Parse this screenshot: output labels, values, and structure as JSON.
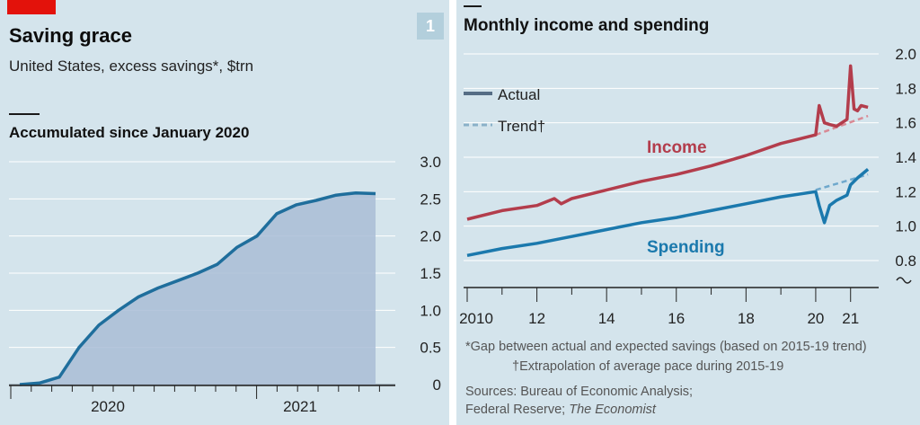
{
  "left_panel": {
    "title": "Saving grace",
    "subtitle": "United States, excess savings*, $trn",
    "panel_number": "1"
  },
  "right_panel": {
    "footnote_star": "*Gap between actual and expected savings (based on 2015-19 trend)",
    "footnote_dagger": "†Extrapolation of average pace during 2015-19",
    "sources_line1": "Sources: Bureau of Economic Analysis;",
    "sources_line2_prefix": "Federal Reserve; ",
    "sources_line2_italic": "The Economist"
  },
  "colors": {
    "background": "#d4e4ec",
    "saving_line": "#1f6e9c",
    "saving_fill": "#a9bdd6",
    "income": "#b33d4c",
    "spending": "#1b79ad",
    "legend_actual": "#556d85",
    "legend_trend": "#8ab0c8",
    "grid": "#ffffff",
    "brand_red": "#e3120b"
  },
  "chart_data": [
    {
      "type": "area",
      "title": "Accumulated since January 2020",
      "xlabel": "",
      "ylabel": "",
      "x_tick_labels": [
        "2020",
        "2021"
      ],
      "y_tick_labels": [
        "0",
        "0.5",
        "1.0",
        "1.5",
        "2.0",
        "2.5",
        "3.0"
      ],
      "ylim": [
        0,
        3.0
      ],
      "x_range_months": [
        "2020-01",
        "2021-07"
      ],
      "grid": true,
      "series": [
        {
          "x": [
            "2020-01",
            "2020-02",
            "2020-03",
            "2020-04",
            "2020-05",
            "2020-06",
            "2020-07",
            "2020-08",
            "2020-09",
            "2020-10",
            "2020-11",
            "2020-12",
            "2021-01",
            "2021-02",
            "2021-03",
            "2021-04",
            "2021-05",
            "2021-06",
            "2021-07"
          ],
          "values": [
            0.0,
            0.02,
            0.1,
            0.5,
            0.8,
            1.0,
            1.18,
            1.3,
            1.4,
            1.5,
            1.62,
            1.85,
            2.0,
            2.3,
            2.42,
            2.48,
            2.55,
            2.58,
            2.57
          ]
        }
      ]
    },
    {
      "type": "line",
      "title": "Monthly income and spending",
      "xlabel": "",
      "ylabel": "",
      "x_tick_labels": [
        "2010",
        "12",
        "14",
        "16",
        "18",
        "20",
        "21"
      ],
      "y_tick_labels": [
        "0.8",
        "1.0",
        "1.2",
        "1.4",
        "1.6",
        "1.8",
        "2.0"
      ],
      "ylim": [
        0.8,
        2.0
      ],
      "grid": true,
      "legend": {
        "entries": [
          "Actual",
          "Trend†"
        ],
        "placement": "top-left"
      },
      "series": [
        {
          "name": "Income",
          "x": [
            2010.0,
            2011.0,
            2012.0,
            2012.5,
            2012.7,
            2013.0,
            2014.0,
            2015.0,
            2016.0,
            2017.0,
            2018.0,
            2019.0,
            2020.0,
            2020.1,
            2020.25,
            2020.4,
            2020.6,
            2020.9,
            2021.0,
            2021.1,
            2021.2,
            2021.3,
            2021.5
          ],
          "values": [
            1.04,
            1.09,
            1.12,
            1.16,
            1.13,
            1.16,
            1.21,
            1.26,
            1.3,
            1.35,
            1.41,
            1.48,
            1.53,
            1.7,
            1.6,
            1.59,
            1.58,
            1.62,
            1.93,
            1.68,
            1.67,
            1.7,
            1.69
          ]
        },
        {
          "name": "Spending",
          "x": [
            2010.0,
            2011.0,
            2012.0,
            2013.0,
            2014.0,
            2015.0,
            2016.0,
            2017.0,
            2018.0,
            2019.0,
            2020.0,
            2020.1,
            2020.25,
            2020.4,
            2020.6,
            2020.9,
            2021.0,
            2021.2,
            2021.5
          ],
          "values": [
            0.83,
            0.87,
            0.9,
            0.94,
            0.98,
            1.02,
            1.05,
            1.09,
            1.13,
            1.17,
            1.2,
            1.12,
            1.02,
            1.12,
            1.15,
            1.18,
            1.24,
            1.28,
            1.33
          ]
        },
        {
          "name": "Income trend",
          "x": [
            2020.0,
            2021.5
          ],
          "values": [
            1.53,
            1.64
          ]
        },
        {
          "name": "Spending trend",
          "x": [
            2020.0,
            2021.5
          ],
          "values": [
            1.21,
            1.3
          ]
        }
      ]
    }
  ]
}
